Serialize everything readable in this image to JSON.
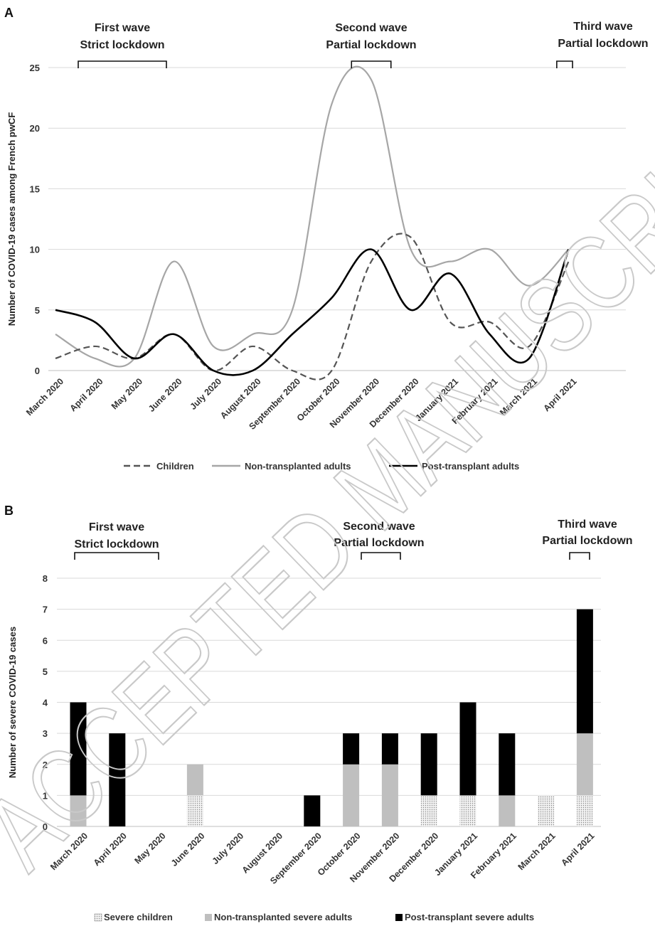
{
  "chart_data": [
    {
      "type": "line",
      "panel": "A",
      "ylabel": "Number of COVID-19 cases among French pwCF",
      "xlabel": "",
      "ylim": [
        0,
        25
      ],
      "yticks": [
        0,
        5,
        10,
        15,
        20,
        25
      ],
      "grid": true,
      "legend_position": "bottom",
      "categories": [
        "March 2020",
        "April 2020",
        "May 2020",
        "June 2020",
        "July 2020",
        "August 2020",
        "September 2020",
        "October 2020",
        "November 2020",
        "December 2020",
        "January 2021",
        "February 2021",
        "March 2021",
        "April 2021"
      ],
      "series": [
        {
          "name": "Children",
          "style": "dashed",
          "color": "#555555",
          "values": [
            1,
            2,
            1,
            3,
            0,
            2,
            0,
            0,
            9,
            11,
            4,
            4,
            2,
            9
          ]
        },
        {
          "name": "Non-transplanted adults",
          "style": "solid",
          "color": "#a6a6a6",
          "values": [
            3,
            1,
            1,
            9,
            2,
            3,
            5,
            22,
            24,
            10,
            9,
            10,
            7,
            10
          ]
        },
        {
          "name": "Post-transplant adults",
          "style": "solid",
          "color": "#000000",
          "values": [
            5,
            4,
            1,
            3,
            0,
            0,
            3,
            6,
            10,
            5,
            8,
            3,
            1,
            10
          ]
        }
      ],
      "waves": [
        {
          "line1": "First wave",
          "line2": "Strict lockdown",
          "start": 0,
          "end": 2
        },
        {
          "line1": "Second wave",
          "line2": "Partial lockdown",
          "start": 7.5,
          "end": 8.5
        },
        {
          "line1": "Third wave",
          "line2": "Partial lockdown",
          "start": 12.7,
          "end": 13.1
        }
      ]
    },
    {
      "type": "bar",
      "stacked": true,
      "panel": "B",
      "ylabel": "Number of severe COVID-19 cases",
      "xlabel": "",
      "ylim": [
        0,
        8
      ],
      "yticks": [
        0,
        1,
        2,
        3,
        4,
        5,
        6,
        7,
        8
      ],
      "grid": true,
      "legend_position": "bottom",
      "categories": [
        "March 2020",
        "April 2020",
        "May 2020",
        "June 2020",
        "July 2020",
        "August 2020",
        "September 2020",
        "October 2020",
        "November 2020",
        "December 2020",
        "January 2021",
        "February 2021",
        "March 2021",
        "April 2021"
      ],
      "series": [
        {
          "name": "Severe children",
          "pattern": "dotted",
          "color": "#e6e6e6",
          "values": [
            0,
            0,
            0,
            1,
            0,
            0,
            0,
            0,
            0,
            1,
            1,
            0,
            1,
            1
          ]
        },
        {
          "name": "Non-transplanted severe adults",
          "color": "#bfbfbf",
          "values": [
            1,
            0,
            0,
            1,
            0,
            0,
            0,
            2,
            2,
            0,
            0,
            1,
            0,
            2
          ]
        },
        {
          "name": "Post-transplant severe adults",
          "color": "#000000",
          "values": [
            3,
            3,
            0,
            0,
            0,
            0,
            1,
            1,
            1,
            2,
            3,
            2,
            0,
            4
          ]
        }
      ],
      "waves": [
        {
          "line1": "First wave",
          "line2": "Strict lockdown",
          "start": 0,
          "end": 2
        },
        {
          "line1": "Second wave",
          "line2": "Partial lockdown",
          "start": 7.5,
          "end": 8.5
        },
        {
          "line1": "Third wave",
          "line2": "Partial lockdown",
          "start": 12.7,
          "end": 13.1
        }
      ]
    }
  ],
  "watermark": "ACCEPTED MANUSCRIPT"
}
